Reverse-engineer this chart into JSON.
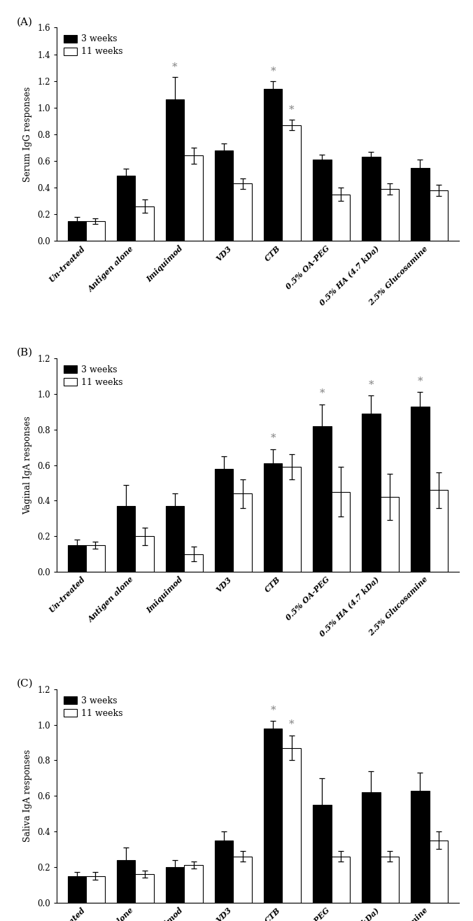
{
  "categories": [
    "Un-treated",
    "Antigen alone",
    "Imiquimod",
    "VD3",
    "CTB",
    "0.5% OA-PEG",
    "0.5% HA (4.7 kDa)",
    "2.5% Glucosamine"
  ],
  "panel_labels": [
    "(A)",
    "(B)",
    "(C)"
  ],
  "ylabels": [
    "Serum IgG responses",
    "Vaginal IgA responses",
    "Saliva IgA responses"
  ],
  "ylim_A": [
    0.0,
    1.6
  ],
  "yticks_A": [
    0.0,
    0.2,
    0.4,
    0.6,
    0.8,
    1.0,
    1.2,
    1.4,
    1.6
  ],
  "ylim_BC": [
    0.0,
    1.2
  ],
  "yticks_BC": [
    0.0,
    0.2,
    0.4,
    0.6,
    0.8,
    1.0,
    1.2
  ],
  "bar_width": 0.38,
  "bar_color_3w": "#000000",
  "bar_color_11w": "#ffffff",
  "bar_edgecolor": "#000000",
  "legend_labels": [
    "3 weeks",
    "11 weeks"
  ],
  "panels": [
    {
      "values_3w": [
        0.15,
        0.49,
        1.06,
        0.68,
        1.14,
        0.61,
        0.63,
        0.55
      ],
      "errors_3w": [
        0.03,
        0.05,
        0.17,
        0.05,
        0.06,
        0.04,
        0.04,
        0.06
      ],
      "values_11w": [
        0.15,
        0.26,
        0.64,
        0.43,
        0.87,
        0.35,
        0.39,
        0.38
      ],
      "errors_11w": [
        0.02,
        0.05,
        0.06,
        0.04,
        0.04,
        0.05,
        0.04,
        0.04
      ],
      "stars_3w": [
        false,
        false,
        true,
        false,
        true,
        false,
        false,
        false
      ],
      "stars_11w": [
        false,
        false,
        false,
        false,
        true,
        false,
        false,
        false
      ]
    },
    {
      "values_3w": [
        0.15,
        0.37,
        0.37,
        0.58,
        0.61,
        0.82,
        0.89,
        0.93
      ],
      "errors_3w": [
        0.03,
        0.12,
        0.07,
        0.07,
        0.08,
        0.12,
        0.1,
        0.08
      ],
      "values_11w": [
        0.15,
        0.2,
        0.1,
        0.44,
        0.59,
        0.45,
        0.42,
        0.46
      ],
      "errors_11w": [
        0.02,
        0.05,
        0.04,
        0.08,
        0.07,
        0.14,
        0.13,
        0.1
      ],
      "stars_3w": [
        false,
        false,
        false,
        false,
        true,
        true,
        true,
        true
      ],
      "stars_11w": [
        false,
        false,
        false,
        false,
        false,
        false,
        false,
        false
      ]
    },
    {
      "values_3w": [
        0.15,
        0.24,
        0.2,
        0.35,
        0.98,
        0.55,
        0.62,
        0.63
      ],
      "errors_3w": [
        0.02,
        0.07,
        0.04,
        0.05,
        0.04,
        0.15,
        0.12,
        0.1
      ],
      "values_11w": [
        0.15,
        0.16,
        0.21,
        0.26,
        0.87,
        0.26,
        0.26,
        0.35
      ],
      "errors_11w": [
        0.02,
        0.02,
        0.02,
        0.03,
        0.07,
        0.03,
        0.03,
        0.05
      ],
      "stars_3w": [
        false,
        false,
        false,
        false,
        true,
        false,
        false,
        false
      ],
      "stars_11w": [
        false,
        false,
        false,
        false,
        true,
        false,
        false,
        false
      ]
    }
  ]
}
